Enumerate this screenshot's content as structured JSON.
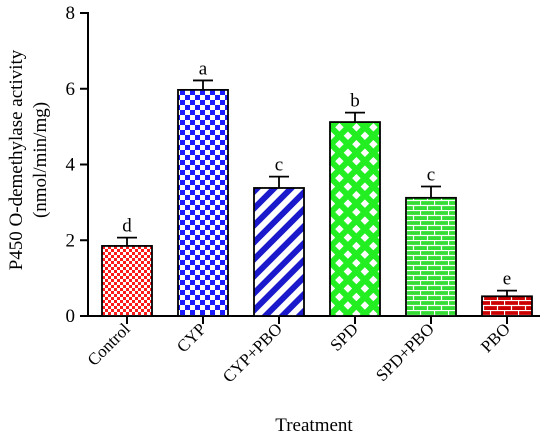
{
  "chart_data": {
    "type": "bar",
    "categories": [
      "Control",
      "CYP",
      "CYP+PBO",
      "SPD",
      "SPD+PBO",
      "PBO"
    ],
    "values": [
      1.85,
      5.97,
      3.38,
      5.12,
      3.12,
      0.52
    ],
    "errors": [
      0.22,
      0.25,
      0.3,
      0.25,
      0.3,
      0.15
    ],
    "significance_letters": [
      "d",
      "a",
      "c",
      "b",
      "c",
      "e"
    ],
    "patterns": [
      "checker-small",
      "checker-large",
      "diagonal-stripes",
      "diamond-lattice",
      "brick",
      "brick"
    ],
    "colors": [
      "#ff1a1a",
      "#1a1aff",
      "#1a1acc",
      "#22ee22",
      "#33dd33",
      "#cc0000"
    ],
    "xlabel": "Treatment",
    "ylabel_line1": "P450 O-demethylase activity",
    "ylabel_line2": "(nmol/min/mg)",
    "ylim": [
      0,
      8
    ],
    "yticks": [
      "0",
      "2",
      "4",
      "6",
      "8"
    ],
    "grid": false,
    "legend": "none"
  }
}
